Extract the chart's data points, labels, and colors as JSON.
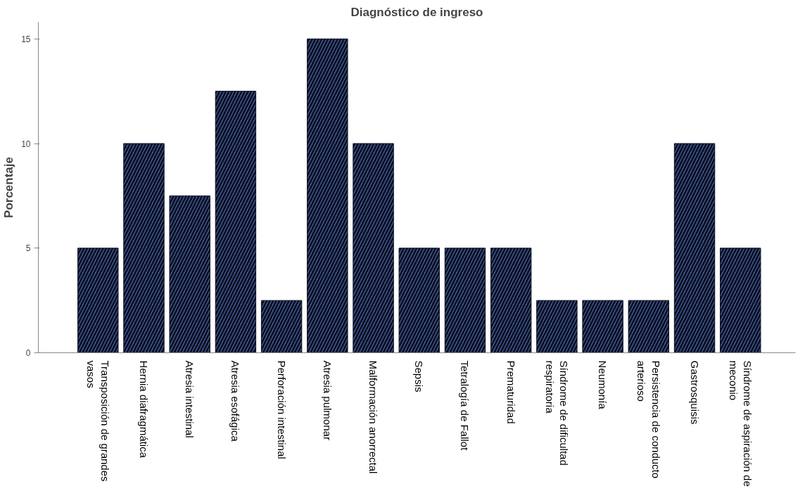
{
  "chart_data": {
    "type": "bar",
    "title": "Diagnóstico de ingreso",
    "ylabel": "Porcentaje",
    "categories": [
      "Transposición de grandes\nvasos",
      "Hernia diafragmática",
      "Atresia intestinal",
      "Atresia esofágica",
      "Perforación intestinal",
      "Atresia pulmonar",
      "Malformación anorrectal",
      "Sepsis",
      "Tetralogía de Fallot",
      "Prematuridad",
      "Síndrome de dificultad\nrespiratoria",
      "Neumonía",
      "Persistencia de conducto\narterioso",
      "Gastrosquisis",
      "Síndrome de aspiración de\nmeconio"
    ],
    "values": [
      5,
      10,
      7.5,
      12.5,
      2.5,
      15,
      10,
      5,
      5,
      5,
      2.5,
      2.5,
      2.5,
      10,
      5
    ],
    "color": "#4a6cb8",
    "ylim": [
      0,
      15.8
    ],
    "yticks": [
      0,
      5,
      10,
      15
    ],
    "grid": false
  }
}
